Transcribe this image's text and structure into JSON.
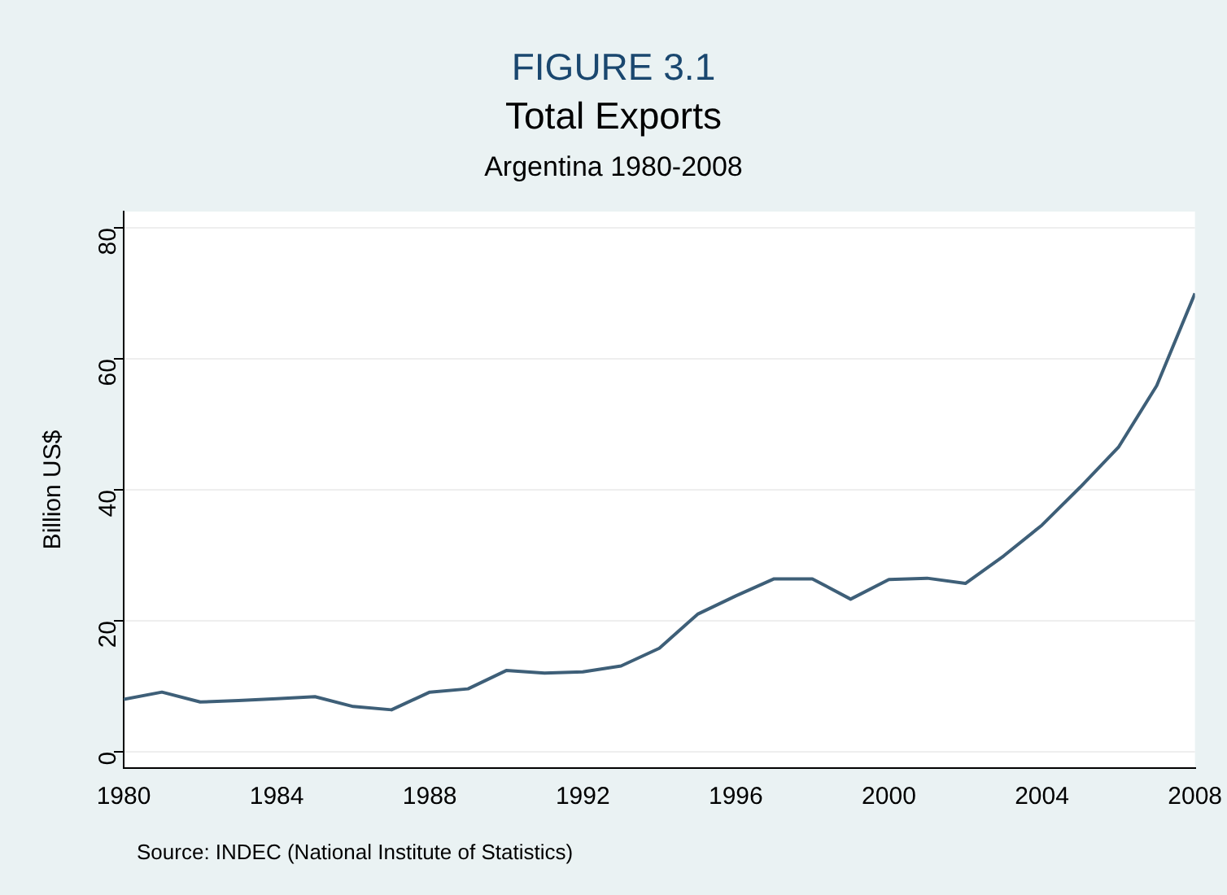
{
  "chart_data": {
    "type": "line",
    "title": "FIGURE 3.1",
    "subtitle": "Total Exports",
    "ylabel": "Billion US$",
    "annotations": [
      "Argentina 1980-2008",
      "Source: INDEC (National Institute of Statistics)"
    ],
    "x": [
      1980,
      1981,
      1982,
      1983,
      1984,
      1985,
      1986,
      1987,
      1988,
      1989,
      1990,
      1991,
      1992,
      1993,
      1994,
      1995,
      1996,
      1997,
      1998,
      1999,
      2000,
      2001,
      2002,
      2003,
      2004,
      2005,
      2006,
      2007,
      2008
    ],
    "series": [
      {
        "color": "#3e5f78",
        "values": [
          8.0,
          9.1,
          7.6,
          7.8,
          8.1,
          8.4,
          6.9,
          6.4,
          9.1,
          9.6,
          12.4,
          12.0,
          12.2,
          13.1,
          15.8,
          21.0,
          23.8,
          26.4,
          26.4,
          23.3,
          26.3,
          26.5,
          25.7,
          29.9,
          34.6,
          40.4,
          46.5,
          55.9,
          70.0
        ]
      }
    ],
    "xlim": [
      1980,
      2008
    ],
    "xticks": [
      1980,
      1984,
      1988,
      1992,
      1996,
      2000,
      2004,
      2008
    ],
    "ylim": [
      -2.5,
      82.5
    ],
    "yticks": [
      0,
      20,
      40,
      60,
      80
    ],
    "grid": "y",
    "legend": false,
    "marker": "none",
    "line_style": "solid"
  }
}
